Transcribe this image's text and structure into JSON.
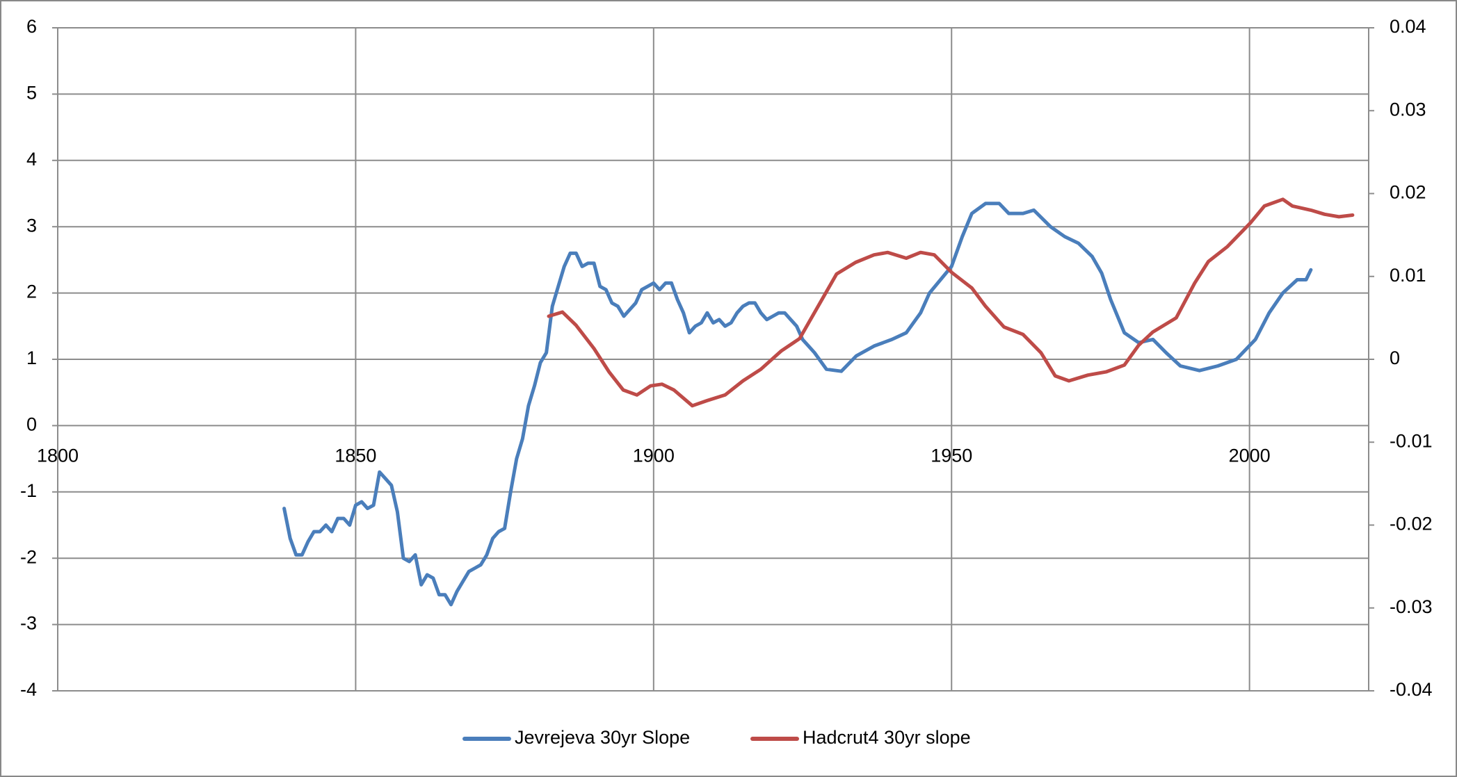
{
  "chart_data": {
    "type": "line",
    "xlim": [
      1800,
      2020
    ],
    "xticks": [
      1800,
      1850,
      1900,
      1950,
      2000
    ],
    "ylim": [
      -4,
      6
    ],
    "yticks": [
      -4,
      -3,
      -2,
      -1,
      0,
      1,
      2,
      3,
      4,
      5,
      6
    ],
    "y2lim": [
      -0.04,
      0.04
    ],
    "y2ticks": [
      -0.04,
      -0.03,
      -0.02,
      -0.01,
      0,
      0.01,
      0.02,
      0.03,
      0.04
    ],
    "grid": true,
    "legend": "bottom",
    "series": [
      {
        "name": "Jevrejeva 30yr Slope",
        "color": "#4a7ebb",
        "x": [
          1838,
          1839,
          1840,
          1841,
          1842,
          1843,
          1844,
          1845,
          1846,
          1847,
          1848,
          1849,
          1850,
          1851,
          1852,
          1853,
          1854,
          1855,
          1856,
          1857,
          1858,
          1859,
          1860,
          1861,
          1862,
          1863,
          1864,
          1865,
          1866,
          1867,
          1868,
          1869,
          1870,
          1871,
          1872,
          1873,
          1874,
          1875,
          1876,
          1877,
          1878,
          1879,
          1880,
          1881,
          1882,
          1883,
          1884,
          1885,
          1886,
          1887,
          1888,
          1889,
          1890,
          1891,
          1892,
          1893,
          1894,
          1895,
          1896,
          1897,
          1898,
          1899,
          1900,
          1901,
          1902,
          1903,
          1904,
          1905,
          1906,
          1907,
          1908,
          1909,
          1910,
          1911,
          1912,
          1913,
          1914,
          1915,
          1916,
          1917,
          1918,
          1919,
          1920,
          1921,
          1922,
          1923,
          1924,
          1925,
          1926,
          1927,
          1929,
          1931.5,
          1934,
          1937,
          1940,
          1942.4,
          1944.8,
          1946.3,
          1950,
          1951.8,
          1953.4,
          1955.7,
          1958,
          1959.6,
          1962,
          1963.8,
          1966.6,
          1969,
          1971.3,
          1973.6,
          1975.2,
          1976.7,
          1979,
          1981.4,
          1983.8,
          1986,
          1988.4,
          1991.6,
          1994.7,
          1997.8,
          2001,
          2003.3,
          2005.6,
          2008,
          2009.5,
          2010.3
        ],
        "values": [
          -1.25,
          -1.7,
          -1.95,
          -1.95,
          -1.75,
          -1.6,
          -1.6,
          -1.5,
          -1.6,
          -1.4,
          -1.4,
          -1.5,
          -1.2,
          -1.15,
          -1.25,
          -1.2,
          -0.7,
          -0.8,
          -0.9,
          -1.3,
          -2.0,
          -2.05,
          -1.95,
          -2.4,
          -2.25,
          -2.3,
          -2.55,
          -2.55,
          -2.7,
          -2.5,
          -2.35,
          -2.2,
          -2.15,
          -2.1,
          -1.95,
          -1.7,
          -1.6,
          -1.55,
          -1.0,
          -0.5,
          -0.2,
          0.3,
          0.6,
          0.95,
          1.1,
          1.8,
          2.1,
          2.4,
          2.6,
          2.6,
          2.4,
          2.45,
          2.45,
          2.1,
          2.05,
          1.85,
          1.8,
          1.65,
          1.75,
          1.85,
          2.05,
          2.1,
          2.15,
          2.05,
          2.15,
          2.15,
          1.9,
          1.7,
          1.4,
          1.5,
          1.55,
          1.7,
          1.55,
          1.6,
          1.5,
          1.55,
          1.7,
          1.8,
          1.85,
          1.85,
          1.7,
          1.6,
          1.65,
          1.7,
          1.7,
          1.6,
          1.5,
          1.3,
          1.2,
          1.1,
          0.85,
          0.82,
          1.05,
          1.2,
          1.3,
          1.4,
          1.7,
          2.0,
          2.4,
          2.85,
          3.2,
          3.35,
          3.35,
          3.2,
          3.2,
          3.25,
          3.0,
          2.85,
          2.75,
          2.55,
          2.3,
          1.9,
          1.4,
          1.25,
          1.3,
          1.1,
          0.9,
          0.83,
          0.9,
          1.0,
          1.3,
          1.7,
          2.0,
          2.2,
          2.2,
          2.35
        ]
      },
      {
        "name": "Hadcrut4 30yr slope",
        "color": "#be4b48",
        "axis": "y2",
        "x": [
          1882.4,
          1884.7,
          1887,
          1890,
          1892.5,
          1894.9,
          1897.2,
          1899.5,
          1901.4,
          1903.4,
          1906.5,
          1908.9,
          1912,
          1915,
          1918,
          1921.4,
          1924.5,
          1927.6,
          1930.7,
          1933.9,
          1937,
          1939.3,
          1942.4,
          1944.8,
          1947.1,
          1950,
          1953.4,
          1955.7,
          1958.8,
          1962,
          1965,
          1967.4,
          1969.7,
          1972.9,
          1976,
          1979,
          1981.4,
          1983.8,
          1987.7,
          1990.8,
          1993.1,
          1996.3,
          2000.2,
          2002.5,
          2005.6,
          2007.2,
          2010.3,
          2012.6,
          2015,
          2017.3
        ],
        "values": [
          0.0052,
          0.0057,
          0.0041,
          0.0013,
          -0.0015,
          -0.0037,
          -0.0043,
          -0.0032,
          -0.003,
          -0.0037,
          -0.0056,
          -0.005,
          -0.0043,
          -0.0026,
          -0.0012,
          0.001,
          0.0025,
          0.0064,
          0.0103,
          0.0117,
          0.0126,
          0.0129,
          0.0122,
          0.0129,
          0.0126,
          0.0105,
          0.0086,
          0.0064,
          0.0039,
          0.003,
          0.0008,
          -0.002,
          -0.0026,
          -0.0019,
          -0.0015,
          -0.0007,
          0.0017,
          0.0033,
          0.005,
          0.0092,
          0.0118,
          0.0136,
          0.0165,
          0.0185,
          0.0193,
          0.0185,
          0.018,
          0.0175,
          0.0172,
          0.0174
        ]
      }
    ]
  }
}
